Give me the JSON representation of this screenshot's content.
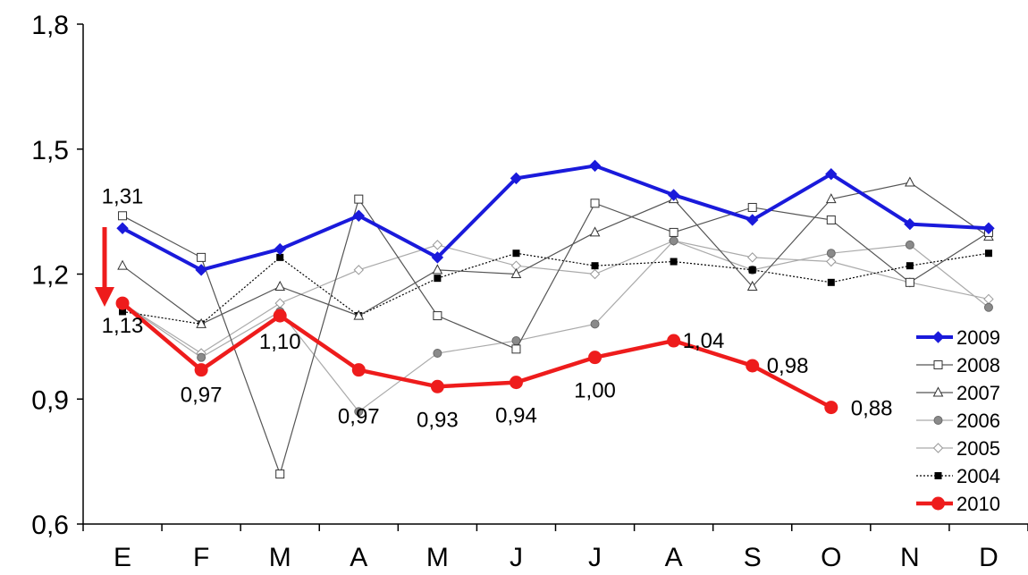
{
  "chart_data": {
    "type": "line",
    "categories": [
      "E",
      "F",
      "M",
      "A",
      "M",
      "J",
      "J",
      "A",
      "S",
      "O",
      "N",
      "D"
    ],
    "ylim": [
      0.6,
      1.8
    ],
    "yticks": [
      "0,6",
      "0,9",
      "1,2",
      "1,5",
      "1,8"
    ],
    "ytick_values": [
      0.6,
      0.9,
      1.2,
      1.5,
      1.8
    ],
    "grid": false,
    "legend_position": "bottom-right",
    "series": [
      {
        "name": "2009",
        "color": "#1a1adb",
        "marker": "diamond-filled",
        "style": "solid-thick",
        "values": [
          1.31,
          1.21,
          1.26,
          1.34,
          1.24,
          1.43,
          1.46,
          1.39,
          1.33,
          1.44,
          1.32,
          1.31
        ]
      },
      {
        "name": "2008",
        "color": "#555555",
        "marker": "square-open",
        "style": "solid-thin",
        "values": [
          1.34,
          1.24,
          0.72,
          1.38,
          1.1,
          1.02,
          1.37,
          1.3,
          1.36,
          1.33,
          1.18,
          1.3
        ]
      },
      {
        "name": "2007",
        "color": "#555555",
        "marker": "triangle-open",
        "style": "solid-thin",
        "values": [
          1.22,
          1.08,
          1.17,
          1.1,
          1.21,
          1.2,
          1.3,
          1.38,
          1.17,
          1.38,
          1.42,
          1.29
        ]
      },
      {
        "name": "2006",
        "color": "#888888",
        "marker": "circle-filled-gray",
        "style": "solid-thin-light",
        "values": [
          1.13,
          1.0,
          1.11,
          0.87,
          1.01,
          1.04,
          1.08,
          1.28,
          1.21,
          1.25,
          1.27,
          1.12
        ]
      },
      {
        "name": "2005",
        "color": "#aaaaaa",
        "marker": "diamond-open",
        "style": "solid-thin-light",
        "values": [
          1.13,
          1.01,
          1.13,
          1.21,
          1.27,
          1.22,
          1.2,
          1.28,
          1.24,
          1.23,
          1.18,
          1.14
        ]
      },
      {
        "name": "2004",
        "color": "#000000",
        "marker": "square-filled",
        "style": "dotted",
        "values": [
          1.11,
          1.08,
          1.24,
          1.1,
          1.19,
          1.25,
          1.22,
          1.23,
          1.21,
          1.18,
          1.22,
          1.25
        ]
      },
      {
        "name": "2010",
        "color": "#ee1c1c",
        "marker": "circle-filled",
        "style": "solid-thick",
        "values": [
          1.13,
          0.97,
          1.1,
          0.97,
          0.93,
          0.94,
          1.0,
          1.04,
          0.98,
          0.88,
          null,
          null
        ]
      }
    ],
    "data_labels": [
      {
        "text": "1,31"
      },
      {
        "text": "1,13"
      },
      {
        "text": "0,97"
      },
      {
        "text": "1,10"
      },
      {
        "text": "0,97"
      },
      {
        "text": "0,93"
      },
      {
        "text": "0,94"
      },
      {
        "text": "1,00"
      },
      {
        "text": "1,04"
      },
      {
        "text": "0,98"
      },
      {
        "text": "0,88"
      }
    ],
    "annotation": {
      "type": "down-arrow",
      "color": "#ee1c1c"
    }
  }
}
